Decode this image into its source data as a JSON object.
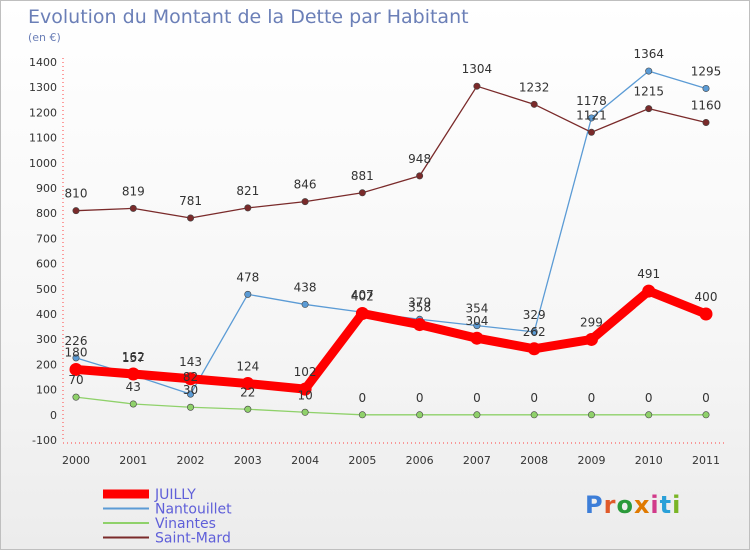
{
  "title": "Evolution du Montant de la Dette par Habitant",
  "subtitle": "(en €)",
  "logo_text": "Proxiti",
  "chart_data": {
    "type": "line",
    "x": [
      "2000",
      "2001",
      "2002",
      "2003",
      "2004",
      "2005",
      "2006",
      "2007",
      "2008",
      "2009",
      "2010",
      "2011"
    ],
    "ylim": [
      -100,
      1400
    ],
    "yticks": [
      -100,
      0,
      100,
      200,
      300,
      400,
      500,
      600,
      700,
      800,
      900,
      1000,
      1100,
      1200,
      1300,
      1400
    ],
    "grid": false,
    "legend_position": "bottom-left",
    "series": [
      {
        "name": "JUILLY",
        "color": "#ff0000",
        "values": [
          180,
          162,
          143,
          124,
          102,
          402,
          358,
          304,
          262,
          299,
          491,
          400
        ]
      },
      {
        "name": "Nantouillet",
        "color": "#5b9bd5",
        "values": [
          226,
          157,
          82,
          478,
          438,
          407,
          379,
          354,
          329,
          1178,
          1364,
          1295
        ]
      },
      {
        "name": "Vinantes",
        "color": "#8fd16a",
        "values": [
          70,
          43,
          30,
          22,
          10,
          0,
          0,
          0,
          0,
          0,
          0,
          0
        ]
      },
      {
        "name": "Saint-Mard",
        "color": "#7a2a2a",
        "values": [
          810,
          819,
          781,
          821,
          846,
          881,
          948,
          1304,
          1232,
          1121,
          1215,
          1160
        ]
      }
    ],
    "data_labels": [
      {
        "series": "JUILLY",
        "labels": [
          "180",
          "162",
          "143",
          "124",
          "102",
          "402",
          "358",
          "304",
          "262",
          "299",
          "491",
          "400"
        ]
      },
      {
        "series": "Nantouillet",
        "labels": [
          "226",
          "157",
          "82",
          "478",
          "438",
          "407",
          "379",
          "354",
          "329",
          "1178",
          "1364",
          "1295"
        ]
      },
      {
        "series": "Vinantes",
        "labels": [
          "70",
          "43",
          "30",
          "22",
          "10",
          "0",
          "0",
          "0",
          "0",
          "0",
          "0",
          "0"
        ]
      },
      {
        "series": "Saint-Mard",
        "labels": [
          "810",
          "819",
          "781",
          "821",
          "846",
          "881",
          "948",
          "1304",
          "1232",
          "1121",
          "1215",
          "1160"
        ]
      }
    ]
  }
}
